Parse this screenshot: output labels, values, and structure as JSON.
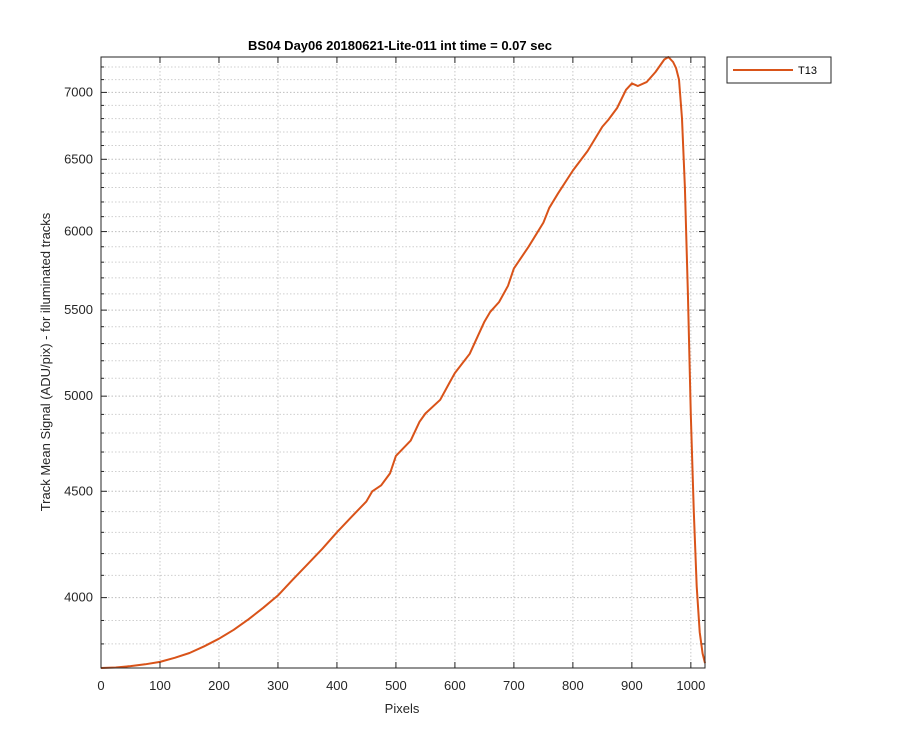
{
  "chart_data": {
    "type": "line",
    "title": "BS04 Day06 20180621-Lite-011 int time = 0.07 sec",
    "xlabel": "Pixels",
    "ylabel": "Track Mean Signal (ADU/pix) - for illuminated tracks",
    "xlim": [
      0,
      1024
    ],
    "ylim": [
      3700,
      7280
    ],
    "y_scale": "log",
    "grid": true,
    "minor_grid": true,
    "legend_position": "outside-top-right",
    "x_ticks": [
      0,
      100,
      200,
      300,
      400,
      500,
      600,
      700,
      800,
      900,
      1000
    ],
    "y_ticks": [
      4000,
      4500,
      5000,
      5500,
      6000,
      6500,
      7000
    ],
    "series": [
      {
        "name": "T13",
        "color": "#D95319",
        "x": [
          0,
          25,
          50,
          75,
          100,
          125,
          150,
          175,
          200,
          225,
          250,
          275,
          300,
          325,
          350,
          375,
          400,
          425,
          450,
          460,
          475,
          490,
          500,
          525,
          540,
          550,
          575,
          590,
          600,
          625,
          650,
          660,
          675,
          690,
          700,
          725,
          750,
          760,
          775,
          800,
          825,
          850,
          860,
          875,
          890,
          900,
          910,
          925,
          940,
          955,
          962,
          970,
          975,
          980,
          985,
          990,
          995,
          1000,
          1005,
          1010,
          1015,
          1020,
          1024
        ],
        "y": [
          3700,
          3702,
          3708,
          3715,
          3725,
          3742,
          3762,
          3790,
          3822,
          3860,
          3905,
          3955,
          4010,
          4080,
          4150,
          4222,
          4300,
          4375,
          4450,
          4500,
          4530,
          4590,
          4680,
          4760,
          4860,
          4905,
          4980,
          5070,
          5130,
          5240,
          5430,
          5490,
          5550,
          5650,
          5760,
          5900,
          6060,
          6160,
          6260,
          6420,
          6560,
          6740,
          6790,
          6880,
          7020,
          7070,
          7050,
          7080,
          7160,
          7260,
          7280,
          7240,
          7190,
          7100,
          6800,
          6300,
          5600,
          4900,
          4400,
          4050,
          3850,
          3760,
          3720
        ]
      }
    ]
  }
}
